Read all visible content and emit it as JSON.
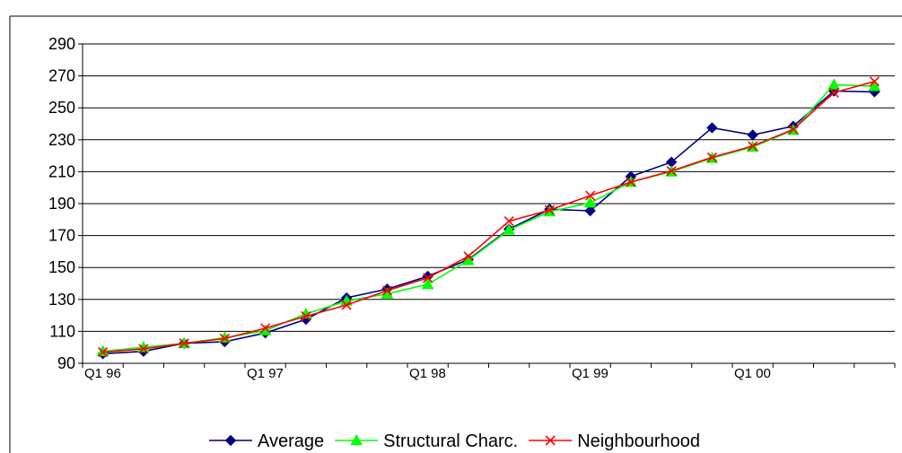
{
  "chart_data": {
    "type": "line",
    "title": "",
    "xlabel": "",
    "ylabel": "",
    "ylim": [
      90,
      290
    ],
    "yticks": [
      90,
      110,
      130,
      150,
      170,
      190,
      210,
      230,
      250,
      270,
      290
    ],
    "categories": [
      "Q1 96",
      "Q2 96",
      "Q3 96",
      "Q4 96",
      "Q1 97",
      "Q2 97",
      "Q3 97",
      "Q4 97",
      "Q1 98",
      "Q2 98",
      "Q3 98",
      "Q4 98",
      "Q1 99",
      "Q2 99",
      "Q3 99",
      "Q4 99",
      "Q1 00",
      "Q2 00",
      "Q3 00",
      "Q4 00"
    ],
    "xtick_labels": [
      {
        "index": 0,
        "label": "Q1 96"
      },
      {
        "index": 4,
        "label": "Q1 97"
      },
      {
        "index": 8,
        "label": "Q1 98"
      },
      {
        "index": 12,
        "label": "Q1 99"
      },
      {
        "index": 16,
        "label": "Q1 00"
      }
    ],
    "grid": true,
    "legend_position": "bottom",
    "series": [
      {
        "name": "Average",
        "color": "#000080",
        "marker": "diamond",
        "values": [
          96,
          97.5,
          102.5,
          103.5,
          109,
          117.5,
          131,
          136.5,
          144.5,
          155,
          174,
          186.5,
          185.5,
          207,
          216,
          237.5,
          233,
          238.5,
          260.5,
          260
        ]
      },
      {
        "name": "Structural Charc.",
        "color": "#00ff00",
        "marker": "triangle",
        "values": [
          97.5,
          100,
          102.5,
          106,
          110.5,
          121,
          129,
          133.5,
          139.5,
          154.5,
          173.5,
          185,
          190.5,
          203.5,
          210,
          218.5,
          225.5,
          236,
          264.5,
          263.5
        ]
      },
      {
        "name": "Neighbourhood",
        "color": "#ff0000",
        "marker": "x",
        "values": [
          97,
          99,
          102.5,
          105.5,
          112,
          119.5,
          126.5,
          135.5,
          143.5,
          157,
          179,
          186,
          195,
          203.5,
          210.5,
          219,
          226,
          236.5,
          259.5,
          266.5
        ]
      }
    ]
  }
}
